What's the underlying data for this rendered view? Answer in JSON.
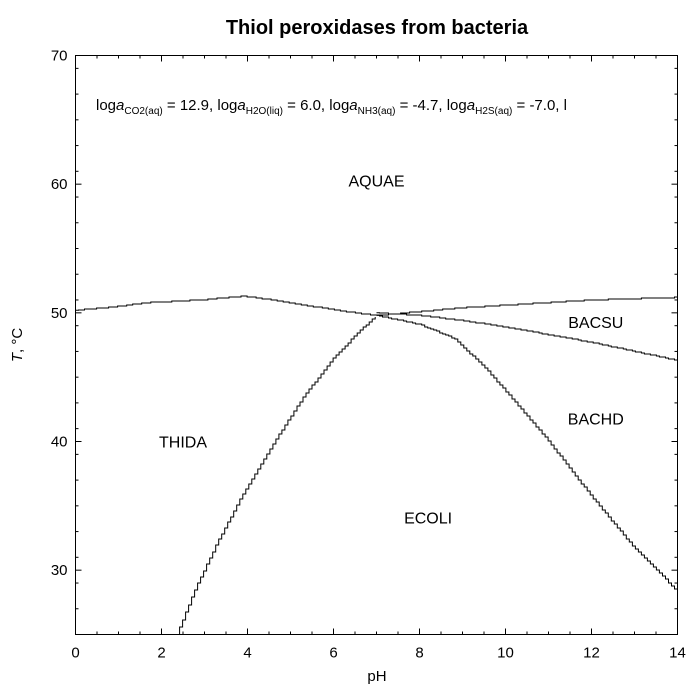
{
  "chart_data": {
    "type": "diagram",
    "title": "Thiol peroxidases from bacteria",
    "xlabel": "pH",
    "ylabel": {
      "italic": "T",
      "rest": ", °C"
    },
    "xlim": [
      0,
      14
    ],
    "ylim": [
      25,
      70
    ],
    "x_ticks": [
      0,
      2,
      4,
      6,
      8,
      10,
      12,
      14
    ],
    "y_ticks": [
      30,
      40,
      50,
      60,
      70
    ],
    "grid": false,
    "annotation": [
      {
        "pre": "log",
        "var": "a",
        "sub": "CO2(aq)",
        "val": " = 12.9, "
      },
      {
        "pre": "log",
        "var": "a",
        "sub": "H2O(liq)",
        "val": " = 6.0, "
      },
      {
        "pre": "log",
        "var": "a",
        "sub": "NH3(aq)",
        "val": " = -4.7, "
      },
      {
        "pre": "log",
        "var": "a",
        "sub": "H2S(aq)",
        "val": " = -7.0, l"
      }
    ],
    "fields": [
      {
        "name": "AQUAE",
        "x": 7.0,
        "y": 60.3
      },
      {
        "name": "BACSU",
        "x": 12.1,
        "y": 49.3
      },
      {
        "name": "BACHD",
        "x": 12.1,
        "y": 41.8
      },
      {
        "name": "THIDA",
        "x": 2.5,
        "y": 40.0
      },
      {
        "name": "ECOLI",
        "x": 8.2,
        "y": 34.1
      }
    ],
    "boundaries": [
      {
        "name": "AQUAE / lower fields",
        "points": [
          [
            0,
            50.2
          ],
          [
            0.7,
            50.4
          ],
          [
            1.7,
            50.8
          ],
          [
            2.9,
            51.0
          ],
          [
            3.9,
            51.3
          ],
          [
            4.6,
            51.0
          ],
          [
            5.5,
            50.5
          ],
          [
            6.5,
            50.0
          ],
          [
            7.0,
            49.8
          ],
          [
            8.0,
            50.1
          ],
          [
            9.0,
            50.4
          ],
          [
            10.0,
            50.6
          ],
          [
            11.0,
            50.8
          ],
          [
            12.0,
            51.0
          ],
          [
            13.0,
            51.1
          ],
          [
            14.0,
            51.2
          ]
        ]
      },
      {
        "name": "BACSU / BACHD",
        "points": [
          [
            7.0,
            50.0
          ],
          [
            8.0,
            49.8
          ],
          [
            9.0,
            49.4
          ],
          [
            10.0,
            48.9
          ],
          [
            11.0,
            48.3
          ],
          [
            12.0,
            47.7
          ],
          [
            13.0,
            47.0
          ],
          [
            14.0,
            46.3
          ]
        ]
      },
      {
        "name": "THIDA / ECOLI",
        "points": [
          [
            2.35,
            25.0
          ],
          [
            2.8,
            28.7
          ],
          [
            3.3,
            32.2
          ],
          [
            3.9,
            36.0
          ],
          [
            4.6,
            39.9
          ],
          [
            5.3,
            43.5
          ],
          [
            6.0,
            46.5
          ],
          [
            6.6,
            48.6
          ],
          [
            7.0,
            49.8
          ]
        ]
      },
      {
        "name": "ECOLI / BACHD",
        "points": [
          [
            7.0,
            49.8
          ],
          [
            8.0,
            49.1
          ],
          [
            8.8,
            48.0
          ],
          [
            9.5,
            45.8
          ],
          [
            10.0,
            43.9
          ],
          [
            11.0,
            40.0
          ],
          [
            12.0,
            35.7
          ],
          [
            13.0,
            31.7
          ],
          [
            13.6,
            29.7
          ],
          [
            14.0,
            28.3
          ]
        ]
      }
    ]
  }
}
